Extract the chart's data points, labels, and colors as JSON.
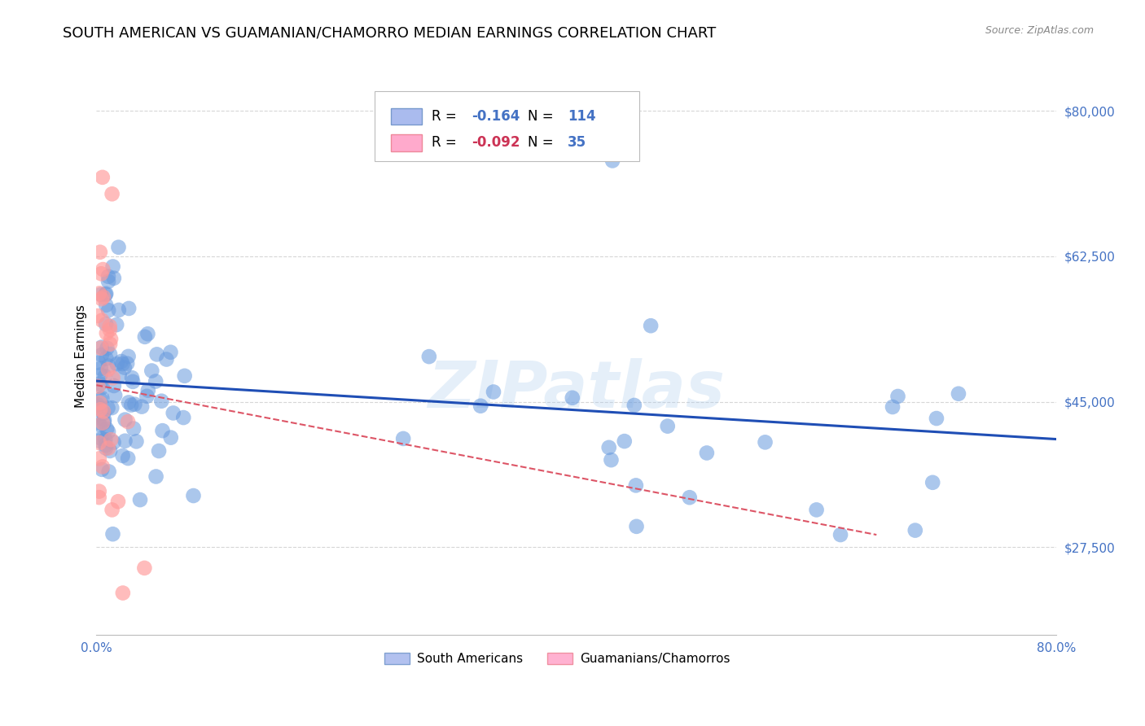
{
  "title": "SOUTH AMERICAN VS GUAMANIAN/CHAMORRO MEDIAN EARNINGS CORRELATION CHART",
  "source": "Source: ZipAtlas.com",
  "ylabel": "Median Earnings",
  "watermark": "ZIPatlas",
  "legend_blue_r": "-0.164",
  "legend_blue_n": "114",
  "legend_pink_r": "-0.092",
  "legend_pink_n": "35",
  "legend_blue_label": "South Americans",
  "legend_pink_label": "Guamanians/Chamorros",
  "xmin": 0.0,
  "xmax": 0.8,
  "ymin": 17000,
  "ymax": 84000,
  "yticks": [
    27500,
    45000,
    62500,
    80000
  ],
  "ytick_labels": [
    "$27,500",
    "$45,000",
    "$62,500",
    "$80,000"
  ],
  "xticks": [
    0.0,
    0.1,
    0.2,
    0.3,
    0.4,
    0.5,
    0.6,
    0.7,
    0.8
  ],
  "xtick_labels": [
    "0.0%",
    "",
    "",
    "",
    "",
    "",
    "",
    "",
    "80.0%"
  ],
  "axis_color": "#4472c4",
  "blue_color": "#6699dd",
  "pink_color": "#ff9999",
  "blue_line_color": "#1f4eb5",
  "pink_line_color": "#dd5566",
  "blue_line_x": [
    0.0,
    0.8
  ],
  "blue_line_y": [
    47500,
    40500
  ],
  "pink_line_x": [
    0.0,
    0.65
  ],
  "pink_line_y": [
    47000,
    29000
  ],
  "background_color": "#ffffff",
  "grid_color": "#cccccc",
  "title_fontsize": 13,
  "ylabel_fontsize": 11,
  "tick_fontsize": 11
}
